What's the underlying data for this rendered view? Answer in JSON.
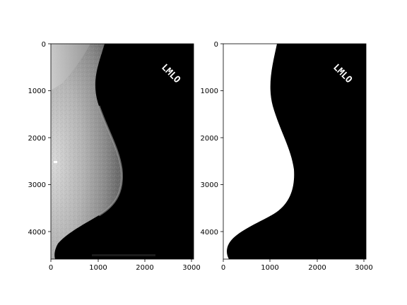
{
  "figure": {
    "panels": [
      {
        "id": "mammogram",
        "x_ticks": [
          "0",
          "1000",
          "2000",
          "3000"
        ],
        "y_ticks": [
          "0",
          "1000",
          "2000",
          "3000",
          "4000"
        ],
        "marker_text": "LMLO"
      },
      {
        "id": "mask",
        "x_ticks": [
          "0",
          "1000",
          "2000",
          "3000"
        ],
        "y_ticks": [
          "0",
          "1000",
          "2000",
          "3000",
          "4000"
        ],
        "marker_text": "LMLO"
      }
    ],
    "colors": {
      "background": "#ffffff",
      "image_black": "#000000",
      "tissue_light": "#c8c8c8",
      "mask_white": "#ffffff"
    }
  }
}
